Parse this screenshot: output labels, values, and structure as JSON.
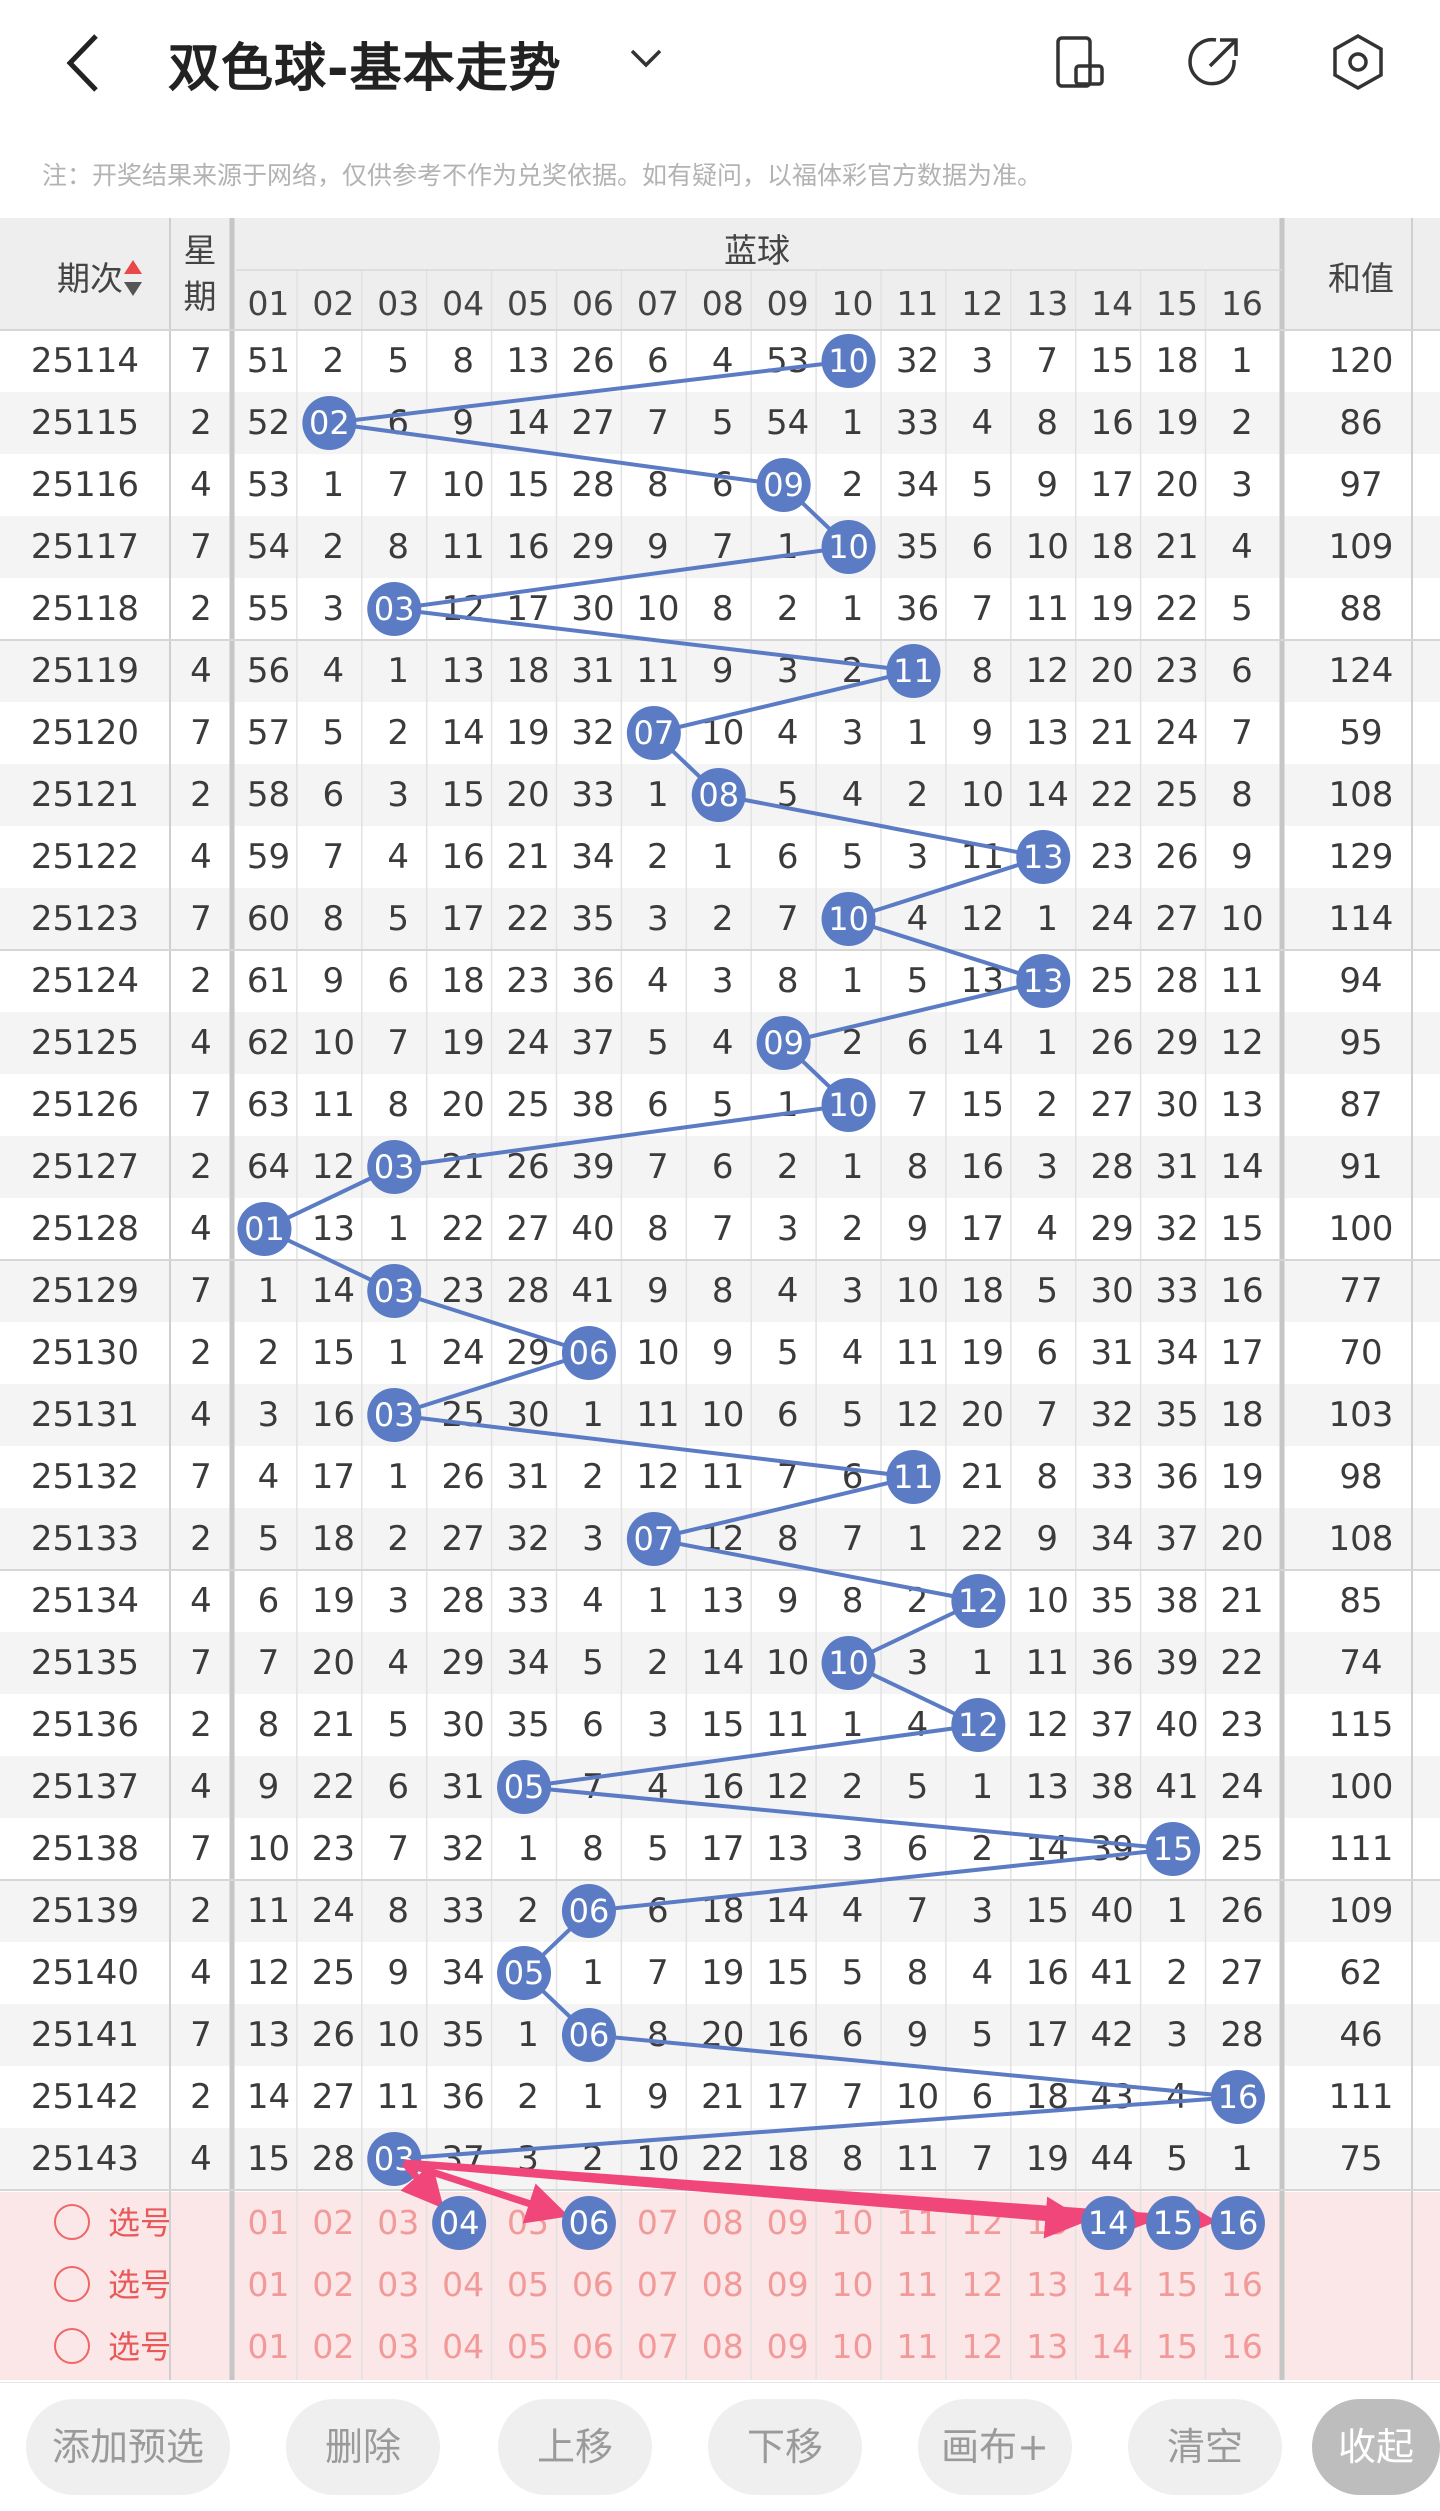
{
  "header": {
    "title": "双色球-基本走势",
    "notice": "注：开奖结果来源于网络，仅供参考不作为兑奖依据。如有疑问，以福体彩官方数据为准。"
  },
  "table": {
    "col_issue": "期次",
    "col_week": "星期",
    "col_blue": "蓝球",
    "col_sum": "和值",
    "blue_numbers": [
      "01",
      "02",
      "03",
      "04",
      "05",
      "06",
      "07",
      "08",
      "09",
      "10",
      "11",
      "12",
      "13",
      "14",
      "15",
      "16"
    ],
    "rows": [
      {
        "issue": "25114",
        "week": "7",
        "hit": "10",
        "cells": [
          "51",
          "2",
          "5",
          "8",
          "13",
          "26",
          "6",
          "4",
          "53",
          "10",
          "32",
          "3",
          "7",
          "15",
          "18",
          "1"
        ],
        "sum": "120"
      },
      {
        "issue": "25115",
        "week": "2",
        "hit": "02",
        "cells": [
          "52",
          "02",
          "6",
          "9",
          "14",
          "27",
          "7",
          "5",
          "54",
          "1",
          "33",
          "4",
          "8",
          "16",
          "19",
          "2"
        ],
        "sum": "86"
      },
      {
        "issue": "25116",
        "week": "4",
        "hit": "09",
        "cells": [
          "53",
          "1",
          "7",
          "10",
          "15",
          "28",
          "8",
          "6",
          "09",
          "2",
          "34",
          "5",
          "9",
          "17",
          "20",
          "3"
        ],
        "sum": "97"
      },
      {
        "issue": "25117",
        "week": "7",
        "hit": "10",
        "cells": [
          "54",
          "2",
          "8",
          "11",
          "16",
          "29",
          "9",
          "7",
          "1",
          "10",
          "35",
          "6",
          "10",
          "18",
          "21",
          "4"
        ],
        "sum": "109"
      },
      {
        "issue": "25118",
        "week": "2",
        "hit": "03",
        "cells": [
          "55",
          "3",
          "03",
          "12",
          "17",
          "30",
          "10",
          "8",
          "2",
          "1",
          "36",
          "7",
          "11",
          "19",
          "22",
          "5"
        ],
        "sum": "88"
      },
      {
        "issue": "25119",
        "week": "4",
        "hit": "11",
        "cells": [
          "56",
          "4",
          "1",
          "13",
          "18",
          "31",
          "11",
          "9",
          "3",
          "2",
          "11",
          "8",
          "12",
          "20",
          "23",
          "6"
        ],
        "sum": "124"
      },
      {
        "issue": "25120",
        "week": "7",
        "hit": "07",
        "cells": [
          "57",
          "5",
          "2",
          "14",
          "19",
          "32",
          "07",
          "10",
          "4",
          "3",
          "1",
          "9",
          "13",
          "21",
          "24",
          "7"
        ],
        "sum": "59"
      },
      {
        "issue": "25121",
        "week": "2",
        "hit": "08",
        "cells": [
          "58",
          "6",
          "3",
          "15",
          "20",
          "33",
          "1",
          "08",
          "5",
          "4",
          "2",
          "10",
          "14",
          "22",
          "25",
          "8"
        ],
        "sum": "108"
      },
      {
        "issue": "25122",
        "week": "4",
        "hit": "13",
        "cells": [
          "59",
          "7",
          "4",
          "16",
          "21",
          "34",
          "2",
          "1",
          "6",
          "5",
          "3",
          "11",
          "13",
          "23",
          "26",
          "9"
        ],
        "sum": "129"
      },
      {
        "issue": "25123",
        "week": "7",
        "hit": "10",
        "cells": [
          "60",
          "8",
          "5",
          "17",
          "22",
          "35",
          "3",
          "2",
          "7",
          "10",
          "4",
          "12",
          "1",
          "24",
          "27",
          "10"
        ],
        "sum": "114"
      },
      {
        "issue": "25124",
        "week": "2",
        "hit": "13",
        "cells": [
          "61",
          "9",
          "6",
          "18",
          "23",
          "36",
          "4",
          "3",
          "8",
          "1",
          "5",
          "13",
          "13",
          "25",
          "28",
          "11"
        ],
        "sum": "94"
      },
      {
        "issue": "25125",
        "week": "4",
        "hit": "09",
        "cells": [
          "62",
          "10",
          "7",
          "19",
          "24",
          "37",
          "5",
          "4",
          "09",
          "2",
          "6",
          "14",
          "1",
          "26",
          "29",
          "12"
        ],
        "sum": "95"
      },
      {
        "issue": "25126",
        "week": "7",
        "hit": "10",
        "cells": [
          "63",
          "11",
          "8",
          "20",
          "25",
          "38",
          "6",
          "5",
          "1",
          "10",
          "7",
          "15",
          "2",
          "27",
          "30",
          "13"
        ],
        "sum": "87"
      },
      {
        "issue": "25127",
        "week": "2",
        "hit": "03",
        "cells": [
          "64",
          "12",
          "03",
          "21",
          "26",
          "39",
          "7",
          "6",
          "2",
          "1",
          "8",
          "16",
          "3",
          "28",
          "31",
          "14"
        ],
        "sum": "91"
      },
      {
        "issue": "25128",
        "week": "4",
        "hit": "01",
        "cells": [
          "01",
          "13",
          "1",
          "22",
          "27",
          "40",
          "8",
          "7",
          "3",
          "2",
          "9",
          "17",
          "4",
          "29",
          "32",
          "15"
        ],
        "sum": "100"
      },
      {
        "issue": "25129",
        "week": "7",
        "hit": "03",
        "cells": [
          "1",
          "14",
          "03",
          "23",
          "28",
          "41",
          "9",
          "8",
          "4",
          "3",
          "10",
          "18",
          "5",
          "30",
          "33",
          "16"
        ],
        "sum": "77"
      },
      {
        "issue": "25130",
        "week": "2",
        "hit": "06",
        "cells": [
          "2",
          "15",
          "1",
          "24",
          "29",
          "06",
          "10",
          "9",
          "5",
          "4",
          "11",
          "19",
          "6",
          "31",
          "34",
          "17"
        ],
        "sum": "70"
      },
      {
        "issue": "25131",
        "week": "4",
        "hit": "03",
        "cells": [
          "3",
          "16",
          "03",
          "25",
          "30",
          "1",
          "11",
          "10",
          "6",
          "5",
          "12",
          "20",
          "7",
          "32",
          "35",
          "18"
        ],
        "sum": "103"
      },
      {
        "issue": "25132",
        "week": "7",
        "hit": "11",
        "cells": [
          "4",
          "17",
          "1",
          "26",
          "31",
          "2",
          "12",
          "11",
          "7",
          "6",
          "11",
          "21",
          "8",
          "33",
          "36",
          "19"
        ],
        "sum": "98"
      },
      {
        "issue": "25133",
        "week": "2",
        "hit": "07",
        "cells": [
          "5",
          "18",
          "2",
          "27",
          "32",
          "3",
          "07",
          "12",
          "8",
          "7",
          "1",
          "22",
          "9",
          "34",
          "37",
          "20"
        ],
        "sum": "108"
      },
      {
        "issue": "25134",
        "week": "4",
        "hit": "12",
        "cells": [
          "6",
          "19",
          "3",
          "28",
          "33",
          "4",
          "1",
          "13",
          "9",
          "8",
          "2",
          "12",
          "10",
          "35",
          "38",
          "21"
        ],
        "sum": "85"
      },
      {
        "issue": "25135",
        "week": "7",
        "hit": "10",
        "cells": [
          "7",
          "20",
          "4",
          "29",
          "34",
          "5",
          "2",
          "14",
          "10",
          "10",
          "3",
          "1",
          "11",
          "36",
          "39",
          "22"
        ],
        "sum": "74"
      },
      {
        "issue": "25136",
        "week": "2",
        "hit": "12",
        "cells": [
          "8",
          "21",
          "5",
          "30",
          "35",
          "6",
          "3",
          "15",
          "11",
          "1",
          "4",
          "12",
          "12",
          "37",
          "40",
          "23"
        ],
        "sum": "115"
      },
      {
        "issue": "25137",
        "week": "4",
        "hit": "05",
        "cells": [
          "9",
          "22",
          "6",
          "31",
          "05",
          "7",
          "4",
          "16",
          "12",
          "2",
          "5",
          "1",
          "13",
          "38",
          "41",
          "24"
        ],
        "sum": "100"
      },
      {
        "issue": "25138",
        "week": "7",
        "hit": "15",
        "cells": [
          "10",
          "23",
          "7",
          "32",
          "1",
          "8",
          "5",
          "17",
          "13",
          "3",
          "6",
          "2",
          "14",
          "39",
          "15",
          "25"
        ],
        "sum": "111"
      },
      {
        "issue": "25139",
        "week": "2",
        "hit": "06",
        "cells": [
          "11",
          "24",
          "8",
          "33",
          "2",
          "06",
          "6",
          "18",
          "14",
          "4",
          "7",
          "3",
          "15",
          "40",
          "1",
          "26"
        ],
        "sum": "109"
      },
      {
        "issue": "25140",
        "week": "4",
        "hit": "05",
        "cells": [
          "12",
          "25",
          "9",
          "34",
          "05",
          "1",
          "7",
          "19",
          "15",
          "5",
          "8",
          "4",
          "16",
          "41",
          "2",
          "27"
        ],
        "sum": "62"
      },
      {
        "issue": "25141",
        "week": "7",
        "hit": "06",
        "cells": [
          "13",
          "26",
          "10",
          "35",
          "1",
          "06",
          "8",
          "20",
          "16",
          "6",
          "9",
          "5",
          "17",
          "42",
          "3",
          "28"
        ],
        "sum": "46"
      },
      {
        "issue": "25142",
        "week": "2",
        "hit": "16",
        "cells": [
          "14",
          "27",
          "11",
          "36",
          "2",
          "1",
          "9",
          "21",
          "17",
          "7",
          "10",
          "6",
          "18",
          "43",
          "4",
          "16"
        ],
        "sum": "111"
      },
      {
        "issue": "25143",
        "week": "4",
        "hit": "03",
        "cells": [
          "15",
          "28",
          "03",
          "37",
          "3",
          "2",
          "10",
          "22",
          "18",
          "8",
          "11",
          "7",
          "19",
          "44",
          "5",
          "1"
        ],
        "sum": "75"
      }
    ]
  },
  "picks": {
    "label": "选号",
    "rows": [
      {
        "selected": [
          "04",
          "06",
          "14",
          "15",
          "16"
        ]
      },
      {
        "selected": []
      },
      {
        "selected": []
      }
    ]
  },
  "toolbar": {
    "add": "添加预选",
    "delete": "删除",
    "up": "上移",
    "down": "下移",
    "canvas": "画布+",
    "clear": "清空",
    "collapse": "收起"
  },
  "colors": {
    "ball_blue": "#5b7cc4",
    "line_blue": "#5b7cc4",
    "arrow_pink": "#f0467a",
    "pick_bg": "#fbe7e7",
    "pick_text": "#f29a9a"
  },
  "icons": [
    "back-arrow-icon",
    "dropdown-chevron-icon",
    "screen-rotate-icon",
    "share-icon",
    "settings-hexagon-icon",
    "sort-arrows-icon"
  ]
}
